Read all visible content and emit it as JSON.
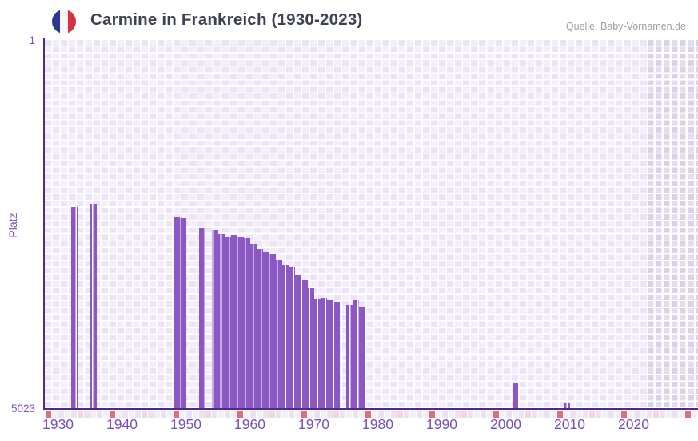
{
  "header": {
    "title": "Carmine in Frankreich (1930-2023)",
    "source": "Quelle: Baby-Vornamen.de",
    "flag_icon": "france-flag-icon"
  },
  "y_axis": {
    "label": "Platz",
    "top_tick": "1",
    "bottom_tick": "5023"
  },
  "chart_data": {
    "type": "bar",
    "title": "Carmine in Frankreich (1930-2023)",
    "xlabel": "",
    "ylabel": "Platz",
    "ylim": [
      1,
      5023
    ],
    "y_axis_inverted": true,
    "x_range": [
      1928,
      2030
    ],
    "x_ticks": [
      1930,
      1940,
      1950,
      1960,
      1970,
      1980,
      1990,
      2000,
      2010,
      2020
    ],
    "grid": "checkerboard",
    "legend": "none",
    "shaded_from_year": 2022,
    "points": [
      {
        "year": 1932,
        "rank": 2270
      },
      {
        "year": 1935,
        "rank": 2230
      },
      {
        "year": 1948,
        "rank": 2410
      },
      {
        "year": 1949,
        "rank": 2430
      },
      {
        "year": 1952,
        "rank": 2555
      },
      {
        "year": 1954,
        "rank": 2590
      },
      {
        "year": 1955,
        "rank": 2640
      },
      {
        "year": 1956,
        "rank": 2690
      },
      {
        "year": 1957,
        "rank": 2660
      },
      {
        "year": 1958,
        "rank": 2690
      },
      {
        "year": 1959,
        "rank": 2700
      },
      {
        "year": 1960,
        "rank": 2785
      },
      {
        "year": 1961,
        "rank": 2850
      },
      {
        "year": 1962,
        "rank": 2880
      },
      {
        "year": 1963,
        "rank": 2915
      },
      {
        "year": 1964,
        "rank": 3000
      },
      {
        "year": 1965,
        "rank": 3070
      },
      {
        "year": 1966,
        "rank": 3090
      },
      {
        "year": 1967,
        "rank": 3205
      },
      {
        "year": 1968,
        "rank": 3280
      },
      {
        "year": 1969,
        "rank": 3375
      },
      {
        "year": 1970,
        "rank": 3530
      },
      {
        "year": 1971,
        "rank": 3515
      },
      {
        "year": 1972,
        "rank": 3550
      },
      {
        "year": 1973,
        "rank": 3575
      },
      {
        "year": 1975,
        "rank": 3615
      },
      {
        "year": 1976,
        "rank": 3540
      },
      {
        "year": 1977,
        "rank": 3640
      },
      {
        "year": 2001,
        "rank": 4665
      },
      {
        "year": 2009,
        "rank": 4940
      }
    ]
  },
  "tick_strip": {
    "red_years": [
      1928,
      1938,
      1948,
      1958,
      1968,
      1978,
      1988,
      1998,
      2008,
      2018,
      2028
    ],
    "pink_years": [
      1933,
      1943,
      1953,
      1963,
      1973,
      1983,
      1993,
      2003,
      2013,
      2023
    ]
  },
  "colors": {
    "bar": "#8a57c4",
    "axis": "#4b2b8f",
    "tick_text": "#7a4ec0",
    "title_text": "#3d4154",
    "source_text": "#9e9e9e",
    "strip_red": "#e56b7c",
    "strip_pink": "#f5d6de",
    "strip_even": "#e9e3f4",
    "strip_odd": "#f3effa",
    "flag_blue": "#29378d",
    "flag_white": "#f6f6f6",
    "flag_red": "#d82f41"
  }
}
